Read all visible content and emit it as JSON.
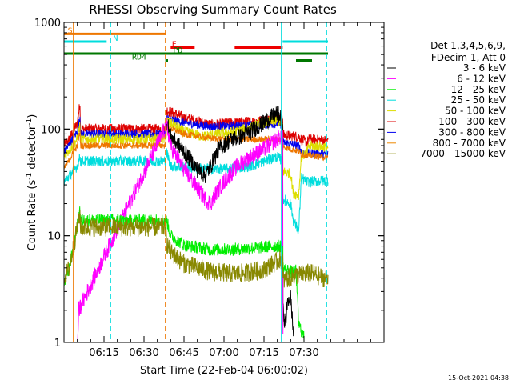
{
  "chart_data": {
    "type": "line",
    "title": "RHESSI Observing Summary Count Rates",
    "xlabel": "Start Time (22-Feb-04 06:00:02)",
    "ylabel_main": "Count Rate (s",
    "ylabel_sup1": "-1",
    "ylabel_mid": " detector",
    "ylabel_sup2": "-1",
    "ylabel_end": ")",
    "xlim_min": [
      0,
      120
    ],
    "x_ticks": [
      {
        "m": 15,
        "label": "06:15"
      },
      {
        "m": 30,
        "label": "06:30"
      },
      {
        "m": 45,
        "label": "06:45"
      },
      {
        "m": 60,
        "label": "07:00"
      },
      {
        "m": 75,
        "label": "07:15"
      },
      {
        "m": 90,
        "label": "07:30"
      }
    ],
    "y_scale": "log",
    "ylim": [
      1,
      1000
    ],
    "y_ticks": [
      {
        "v": 1,
        "label": "1"
      },
      {
        "v": 10,
        "label": "10"
      },
      {
        "v": 100,
        "label": "100"
      },
      {
        "v": 1000,
        "label": "1000"
      }
    ],
    "timestamp": "15-Oct-2021 04:38",
    "legend": {
      "placement": "right",
      "header1": "Det 1,3,4,5,6,9,",
      "header2": "FDecim 1, Att 0",
      "entries": [
        {
          "label": "3 - 6 keV",
          "color": "#000000"
        },
        {
          "label": "6 - 12 keV",
          "color": "#ff00ff"
        },
        {
          "label": "12 - 25 keV",
          "color": "#00ee00"
        },
        {
          "label": "25 - 50 keV",
          "color": "#00dddd"
        },
        {
          "label": "50 - 100 keV",
          "color": "#dddd00"
        },
        {
          "label": "100 - 300 keV",
          "color": "#dd0000"
        },
        {
          "label": "300 - 800 keV",
          "color": "#0000ee"
        },
        {
          "label": "800 - 7000 keV",
          "color": "#ee8800"
        },
        {
          "label": "7000 - 15000 keV",
          "color": "#888800"
        }
      ]
    },
    "flags": [
      {
        "label": "S",
        "color": "#ee7700",
        "start": 0,
        "end": 38,
        "level": 780,
        "text_at": 0.5
      },
      {
        "label": "N",
        "color": "#00dddd",
        "start": 0,
        "end": 16,
        "level": 660,
        "text_at": 17.5
      },
      {
        "label": "N",
        "color": "#00dddd",
        "start": 82,
        "end": 99,
        "level": 660,
        "text_at": null
      },
      {
        "label": "F",
        "color": "#ee0000",
        "start": 40,
        "end": 49,
        "level": 580,
        "text_at": 39.5
      },
      {
        "label": "F",
        "color": "#ee0000",
        "start": 64,
        "end": 82,
        "level": 580,
        "text_at": null
      },
      {
        "label": "PD",
        "color": "#007700",
        "start": 0,
        "end": 99,
        "level": 510,
        "text_at": 40
      },
      {
        "label": "RD4",
        "color": "#007700",
        "start": 38,
        "end": 39,
        "level": 440,
        "text_at": 30
      },
      {
        "label": "",
        "color": "#007700",
        "start": 87,
        "end": 93,
        "level": 440,
        "text_at": null
      }
    ],
    "vlines": [
      {
        "m": 3.5,
        "color": "#ee7700",
        "dashed": false
      },
      {
        "m": 17.5,
        "color": "#00dddd",
        "dashed": true
      },
      {
        "m": 38,
        "color": "#ee7700",
        "dashed": true
      },
      {
        "m": 81.5,
        "color": "#00dddd",
        "dashed": false
      },
      {
        "m": 98.5,
        "color": "#00dddd",
        "dashed": true
      }
    ],
    "series": [
      {
        "color": "#dd0000",
        "noise": 0.05,
        "points": [
          [
            0,
            70
          ],
          [
            2,
            80
          ],
          [
            5,
            115
          ],
          [
            6,
            175
          ],
          [
            6.2,
            100
          ],
          [
            38,
            100
          ],
          [
            38.5,
            150
          ],
          [
            45,
            128
          ],
          [
            55,
            110
          ],
          [
            65,
            115
          ],
          [
            75,
            120
          ],
          [
            80,
            130
          ],
          [
            82,
            120
          ],
          [
            82.1,
            88
          ],
          [
            88,
            85
          ],
          [
            89,
            80
          ],
          [
            91,
            75
          ],
          [
            92,
            80
          ],
          [
            99,
            78
          ]
        ]
      },
      {
        "color": "#0000ee",
        "noise": 0.04,
        "points": [
          [
            0,
            60
          ],
          [
            5,
            95
          ],
          [
            6,
            130
          ],
          [
            6.2,
            90
          ],
          [
            38,
            90
          ],
          [
            38.5,
            125
          ],
          [
            45,
            115
          ],
          [
            55,
            105
          ],
          [
            65,
            108
          ],
          [
            75,
            110
          ],
          [
            80,
            112
          ],
          [
            82,
            110
          ],
          [
            82.1,
            75
          ],
          [
            88,
            70
          ],
          [
            89,
            62
          ],
          [
            91,
            58
          ],
          [
            92,
            60
          ],
          [
            99,
            58
          ]
        ]
      },
      {
        "color": "#dddd00",
        "noise": 0.05,
        "points": [
          [
            0,
            55
          ],
          [
            5,
            80
          ],
          [
            6,
            110
          ],
          [
            6.2,
            80
          ],
          [
            38,
            80
          ],
          [
            38.5,
            120
          ],
          [
            45,
            95
          ],
          [
            52,
            85
          ],
          [
            58,
            90
          ],
          [
            65,
            95
          ],
          [
            75,
            115
          ],
          [
            80,
            120
          ],
          [
            82,
            110
          ],
          [
            82.1,
            40
          ],
          [
            85,
            38
          ],
          [
            86,
            25
          ],
          [
            88,
            24
          ],
          [
            89,
            55
          ],
          [
            91,
            60
          ],
          [
            92,
            70
          ],
          [
            99,
            68
          ]
        ]
      },
      {
        "color": "#ee7700",
        "noise": 0.03,
        "points": [
          [
            0,
            42
          ],
          [
            5,
            70
          ],
          [
            6,
            95
          ],
          [
            6.2,
            70
          ],
          [
            38,
            70
          ],
          [
            38.5,
            105
          ],
          [
            45,
            90
          ],
          [
            55,
            82
          ],
          [
            65,
            80
          ],
          [
            75,
            80
          ],
          [
            82,
            80
          ],
          [
            82.1,
            68
          ],
          [
            88,
            62
          ],
          [
            89,
            58
          ],
          [
            99,
            54
          ]
        ]
      },
      {
        "color": "#00dddd",
        "noise": 0.05,
        "points": [
          [
            0,
            32
          ],
          [
            5,
            45
          ],
          [
            6,
            55
          ],
          [
            6.2,
            50
          ],
          [
            38,
            50
          ],
          [
            38.5,
            60
          ],
          [
            40,
            45
          ],
          [
            50,
            43
          ],
          [
            60,
            42
          ],
          [
            70,
            45
          ],
          [
            80,
            55
          ],
          [
            82,
            50
          ],
          [
            82.1,
            22
          ],
          [
            85,
            20
          ],
          [
            86,
            14
          ],
          [
            88,
            11
          ],
          [
            89,
            35
          ],
          [
            91,
            32
          ],
          [
            99,
            33
          ]
        ]
      },
      {
        "color": "#000000",
        "noise": 0.08,
        "points": [
          [
            38.5,
            120
          ],
          [
            40,
            85
          ],
          [
            45,
            62
          ],
          [
            50,
            42
          ],
          [
            53,
            37
          ],
          [
            55,
            45
          ],
          [
            58,
            65
          ],
          [
            62,
            78
          ],
          [
            66,
            85
          ],
          [
            70,
            95
          ],
          [
            75,
            115
          ],
          [
            78,
            130
          ],
          [
            80,
            140
          ],
          [
            82,
            120
          ],
          [
            82.1,
            2
          ],
          [
            83,
            1.5
          ],
          [
            84,
            2.5
          ],
          [
            85,
            2.7
          ],
          [
            86,
            1.2
          ]
        ]
      },
      {
        "color": "#ff00ff",
        "noise": 0.08,
        "points": [
          [
            5,
            0.8
          ],
          [
            5.5,
            2
          ],
          [
            38.5,
            110
          ],
          [
            40,
            68
          ],
          [
            45,
            42
          ],
          [
            50,
            28
          ],
          [
            53,
            22
          ],
          [
            55,
            20
          ],
          [
            57,
            25
          ],
          [
            60,
            32
          ],
          [
            65,
            45
          ],
          [
            70,
            55
          ],
          [
            75,
            65
          ],
          [
            80,
            80
          ],
          [
            82,
            90
          ],
          [
            82.1,
            1.2
          ]
        ]
      },
      {
        "color": "#00ee00",
        "noise": 0.06,
        "points": [
          [
            0,
            3.5
          ],
          [
            2,
            5
          ],
          [
            4,
            9
          ],
          [
            6,
            18
          ],
          [
            6.2,
            14
          ],
          [
            38,
            14
          ],
          [
            38.5,
            14
          ],
          [
            40,
            10
          ],
          [
            45,
            8.2
          ],
          [
            55,
            7.4
          ],
          [
            65,
            7.5
          ],
          [
            75,
            7.8
          ],
          [
            80,
            8
          ],
          [
            82,
            8
          ],
          [
            82.1,
            5
          ],
          [
            86,
            4.5
          ],
          [
            87,
            4.8
          ],
          [
            88,
            1.5
          ],
          [
            90,
            1.1
          ]
        ]
      },
      {
        "color": "#888800",
        "noise": 0.09,
        "points": [
          [
            0,
            4
          ],
          [
            2,
            5
          ],
          [
            4,
            9
          ],
          [
            6,
            16
          ],
          [
            6.2,
            12
          ],
          [
            38,
            12
          ],
          [
            38.5,
            8.5
          ],
          [
            40,
            7
          ],
          [
            45,
            5.5
          ],
          [
            55,
            4.6
          ],
          [
            65,
            4.4
          ],
          [
            75,
            4.8
          ],
          [
            81,
            6
          ],
          [
            82,
            6
          ],
          [
            82.1,
            3.8
          ],
          [
            86,
            4.2
          ],
          [
            92,
            4.5
          ],
          [
            99,
            3.9
          ]
        ]
      }
    ]
  }
}
